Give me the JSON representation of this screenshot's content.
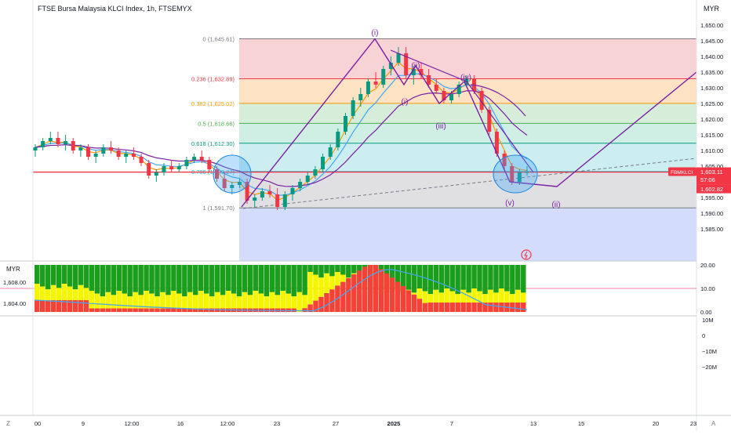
{
  "header": {
    "title": "FTSE Bursa Malaysia KLCI Index, 1h, FTSEMYX",
    "currency": "MYR",
    "pane_currency": "MYR"
  },
  "price_axis": {
    "ticks": [
      "1,650.00",
      "1,645.00",
      "1,640.00",
      "1,635.00",
      "1,630.00",
      "1,625.00",
      "1,620.00",
      "1,615.00",
      "1,610.00",
      "1,605.00",
      "1,600.00",
      "1,595.00",
      "1,590.00",
      "1,585.00"
    ],
    "tick_values": [
      1650,
      1645,
      1640,
      1635,
      1630,
      1625,
      1620,
      1615,
      1610,
      1605,
      1600,
      1595,
      1590,
      1585
    ],
    "ymax": 1652.5,
    "ymin": 1580.5,
    "last_price_badge": {
      "symbol": "FBMKLCI",
      "price": "1,603.11",
      "countdown": "57:06",
      "price_value": 1603.11
    },
    "second_badge": {
      "price": "1,602.82",
      "price_value": 1602.82
    }
  },
  "osc_axis": {
    "ticks": [
      "20.00",
      "10.00",
      "0.00"
    ],
    "tick_values": [
      20,
      10,
      0
    ],
    "left_ticks": [
      "1,608.00",
      "1,604.00"
    ]
  },
  "vol_axis": {
    "ticks": [
      "10M",
      "0",
      "−10M",
      "−20M"
    ],
    "tick_values": [
      10,
      0,
      -10,
      -20
    ]
  },
  "time_axis": {
    "labels": [
      "00",
      "9",
      "12:00",
      "16",
      "12:00",
      "23",
      "27",
      "2025",
      "7",
      "13",
      "15",
      "20",
      "23"
    ],
    "bold_index": 7,
    "z_button": "Z",
    "a_button": "A"
  },
  "fib_levels": [
    {
      "label": "0 (1,645.61)",
      "value": 1645.61,
      "ratio": "0",
      "color": "#787b86",
      "zone": "#f8d3d6"
    },
    {
      "label": "0.236 (1,632.89)",
      "value": 1632.89,
      "ratio": "0.236",
      "color": "#f23645",
      "zone": "#fde3c4"
    },
    {
      "label": "0.382 (1,625.02)",
      "value": 1625.02,
      "ratio": "0.382",
      "color": "#ff9800",
      "zone": "#d6edda"
    },
    {
      "label": "0.5 (1,618.66)",
      "value": 1618.66,
      "ratio": "0.5",
      "color": "#4caf50",
      "zone": "#cfeee4"
    },
    {
      "label": "0.618 (1,612.30)",
      "value": 1612.3,
      "ratio": "0.618",
      "color": "#089981",
      "zone": "#cdeef0"
    },
    {
      "label": "0.786 (1,603.27)",
      "value": 1603.27,
      "ratio": "0.786",
      "color": "#00bcd4",
      "zone": "#e0e0e3"
    },
    {
      "label": "1 (1,591.70)",
      "value": 1591.7,
      "ratio": "1",
      "color": "#787b86",
      "zone": "#d4dcfb"
    }
  ],
  "wave_labels": [
    "(i)",
    "(ii)",
    "(i)",
    "(iii)",
    "(iv)",
    "(v)",
    "(ii)"
  ],
  "chart_data": {
    "type": "candlestick",
    "title": "FTSE Bursa Malaysia KLCI Index, 1h, FTSEMYX",
    "ylim": [
      1580.5,
      1652.5
    ],
    "horizontal_line": 1603.11,
    "candles": [
      [
        1610,
        1612,
        1608,
        1611
      ],
      [
        1611,
        1614,
        1610,
        1613
      ],
      [
        1613,
        1616,
        1612,
        1614
      ],
      [
        1614,
        1616,
        1611,
        1612
      ],
      [
        1612,
        1615,
        1610,
        1613
      ],
      [
        1613,
        1614,
        1609,
        1610
      ],
      [
        1610,
        1612,
        1608,
        1611
      ],
      [
        1611,
        1612,
        1607,
        1608
      ],
      [
        1608,
        1610,
        1606,
        1609
      ],
      [
        1609,
        1612,
        1608,
        1611
      ],
      [
        1611,
        1613,
        1609,
        1610
      ],
      [
        1610,
        1611,
        1607,
        1608
      ],
      [
        1608,
        1610,
        1606,
        1609
      ],
      [
        1609,
        1611,
        1607,
        1608
      ],
      [
        1608,
        1609,
        1605,
        1606
      ],
      [
        1606,
        1607,
        1601,
        1602
      ],
      [
        1602,
        1604,
        1600,
        1603
      ],
      [
        1603,
        1606,
        1602,
        1605
      ],
      [
        1605,
        1607,
        1603,
        1604
      ],
      [
        1604,
        1606,
        1603,
        1605
      ],
      [
        1605,
        1608,
        1604,
        1607
      ],
      [
        1607,
        1609,
        1606,
        1608
      ],
      [
        1608,
        1610,
        1606,
        1607
      ],
      [
        1607,
        1608,
        1603,
        1604
      ],
      [
        1604,
        1605,
        1600,
        1601
      ],
      [
        1601,
        1603,
        1597,
        1598
      ],
      [
        1598,
        1600,
        1596,
        1599
      ],
      [
        1599,
        1601,
        1598,
        1600
      ],
      [
        1600,
        1601,
        1593,
        1594
      ],
      [
        1594,
        1596,
        1592,
        1595
      ],
      [
        1595,
        1598,
        1594,
        1597
      ],
      [
        1597,
        1599,
        1595,
        1596
      ],
      [
        1596,
        1598,
        1591,
        1592
      ],
      [
        1592,
        1597,
        1591,
        1596
      ],
      [
        1596,
        1599,
        1594,
        1598
      ],
      [
        1598,
        1601,
        1597,
        1600
      ],
      [
        1600,
        1603,
        1599,
        1602
      ],
      [
        1602,
        1605,
        1601,
        1604
      ],
      [
        1604,
        1609,
        1603,
        1608
      ],
      [
        1608,
        1612,
        1607,
        1611
      ],
      [
        1611,
        1617,
        1610,
        1616
      ],
      [
        1616,
        1622,
        1615,
        1621
      ],
      [
        1621,
        1627,
        1620,
        1626
      ],
      [
        1626,
        1630,
        1624,
        1628
      ],
      [
        1628,
        1633,
        1627,
        1632
      ],
      [
        1632,
        1635,
        1630,
        1631
      ],
      [
        1631,
        1637,
        1630,
        1636
      ],
      [
        1636,
        1640,
        1634,
        1638
      ],
      [
        1638,
        1643,
        1637,
        1641
      ],
      [
        1641,
        1643,
        1633,
        1634
      ],
      [
        1634,
        1637,
        1631,
        1636
      ],
      [
        1636,
        1638,
        1633,
        1634
      ],
      [
        1634,
        1636,
        1630,
        1631
      ],
      [
        1631,
        1633,
        1628,
        1629
      ],
      [
        1629,
        1630,
        1625,
        1626
      ],
      [
        1626,
        1629,
        1625,
        1628
      ],
      [
        1628,
        1632,
        1627,
        1631
      ],
      [
        1631,
        1634,
        1630,
        1633
      ],
      [
        1633,
        1634,
        1628,
        1629
      ],
      [
        1629,
        1630,
        1622,
        1623
      ],
      [
        1623,
        1624,
        1615,
        1616
      ],
      [
        1616,
        1617,
        1608,
        1609
      ],
      [
        1609,
        1610,
        1604,
        1605
      ],
      [
        1605,
        1606,
        1599,
        1600
      ],
      [
        1600,
        1604,
        1599,
        1603
      ],
      [
        1603,
        1605,
        1602,
        1603.11
      ]
    ],
    "oscillator": {
      "ylim": [
        0,
        20
      ],
      "levels": [
        10
      ]
    },
    "volume_axis_ticks": [
      "10M",
      "0",
      "−10M",
      "−20M"
    ]
  }
}
